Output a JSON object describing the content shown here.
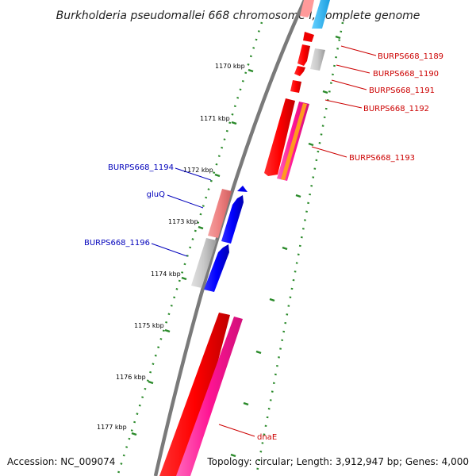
{
  "title": "Burkholderia pseudomallei 668 chromosome I, complete genome",
  "accession_text": "Accession: NC_009074",
  "summary_text": "Topology: circular; Length: 3,912,947 bp; Genes: 4,000",
  "colors": {
    "forward_label": "#cc0000",
    "reverse_label": "#0000bb",
    "backbone": "#808080",
    "tick": "#2a8a2a"
  },
  "scale_labels": [
    "1170 kbp",
    "1171 kbp",
    "1172 kbp",
    "1173 kbp",
    "1174 kbp",
    "1175 kbp",
    "1176 kbp",
    "1177 kbp"
  ],
  "gene_labels": {
    "burps668_1189": "BURPS668_1189",
    "burps668_1190": "BURPS668_1190",
    "burps668_1191": "BURPS668_1191",
    "burps668_1192": "BURPS668_1192",
    "burps668_1193": "BURPS668_1193",
    "burps668_1194": "BURPS668_1194",
    "gluq": "gluQ",
    "burps668_1196": "BURPS668_1196",
    "dnae": "dnaE"
  }
}
